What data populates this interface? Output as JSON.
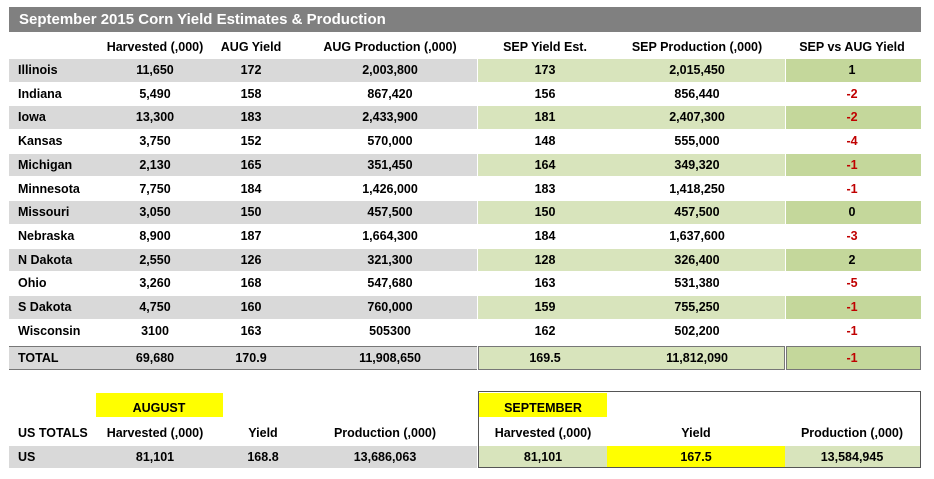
{
  "title": "September 2015 Corn Yield Estimates & Production",
  "table": {
    "columns": [
      "Harvested (,000)",
      "AUG Yield",
      "AUG Production (,000)",
      "SEP Yield Est.",
      "SEP Production (,000)",
      "SEP vs AUG Yield"
    ],
    "rows": [
      [
        "Illinois",
        "11,650",
        "172",
        "2,003,800",
        "173",
        "2,015,450",
        "1"
      ],
      [
        "Indiana",
        "5,490",
        "158",
        "867,420",
        "156",
        "856,440",
        "-2"
      ],
      [
        "Iowa",
        "13,300",
        "183",
        "2,433,900",
        "181",
        "2,407,300",
        "-2"
      ],
      [
        "Kansas",
        "3,750",
        "152",
        "570,000",
        "148",
        "555,000",
        "-4"
      ],
      [
        "Michigan",
        "2,130",
        "165",
        "351,450",
        "164",
        "349,320",
        "-1"
      ],
      [
        "Minnesota",
        "7,750",
        "184",
        "1,426,000",
        "183",
        "1,418,250",
        "-1"
      ],
      [
        "Missouri",
        "3,050",
        "150",
        "457,500",
        "150",
        "457,500",
        "0"
      ],
      [
        "Nebraska",
        "8,900",
        "187",
        "1,664,300",
        "184",
        "1,637,600",
        "-3"
      ],
      [
        "N Dakota",
        "2,550",
        "126",
        "321,300",
        "128",
        "326,400",
        "2"
      ],
      [
        "Ohio",
        "3,260",
        "168",
        "547,680",
        "163",
        "531,380",
        "-5"
      ],
      [
        "S Dakota",
        "4,750",
        "160",
        "760,000",
        "159",
        "755,250",
        "-1"
      ],
      [
        "Wisconsin",
        "3100",
        "163",
        "505300",
        "162",
        "502,200",
        "-1"
      ]
    ],
    "total": [
      "TOTAL",
      "69,680",
      "170.9",
      "11,908,650",
      "169.5",
      "11,812,090",
      "-1"
    ]
  },
  "us_totals": {
    "august_label": "AUGUST",
    "september_label": "SEPTEMBER",
    "label": "US TOTALS",
    "columns": [
      "Harvested (,000)",
      "Yield",
      "Production (,000)",
      "Harvested (,000)",
      "Yield",
      "Production (,000)"
    ],
    "row": [
      "US",
      "81,101",
      "168.8",
      "13,686,063",
      "81,101",
      "167.5",
      "13,584,945"
    ]
  }
}
